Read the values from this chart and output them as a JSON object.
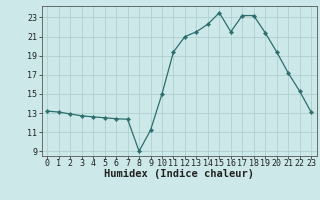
{
  "x": [
    0,
    1,
    2,
    3,
    4,
    5,
    6,
    7,
    8,
    9,
    10,
    11,
    12,
    13,
    14,
    15,
    16,
    17,
    18,
    19,
    20,
    21,
    22,
    23
  ],
  "y": [
    13.2,
    13.1,
    12.9,
    12.7,
    12.6,
    12.5,
    12.4,
    12.35,
    9.0,
    11.2,
    15.0,
    19.4,
    21.0,
    21.5,
    22.3,
    23.5,
    21.5,
    23.2,
    23.2,
    21.4,
    19.4,
    17.2,
    15.3,
    13.1
  ],
  "line_color": "#2d6e6e",
  "marker": "D",
  "marker_size": 2.2,
  "bg_color": "#cce8e8",
  "grid_color": "#b0d0d0",
  "xlabel": "Humidex (Indice chaleur)",
  "xlim": [
    -0.5,
    23.5
  ],
  "ylim": [
    8.5,
    24.2
  ],
  "yticks": [
    9,
    11,
    13,
    15,
    17,
    19,
    21,
    23
  ],
  "xticks": [
    0,
    1,
    2,
    3,
    4,
    5,
    6,
    7,
    8,
    9,
    10,
    11,
    12,
    13,
    14,
    15,
    16,
    17,
    18,
    19,
    20,
    21,
    22,
    23
  ],
  "tick_fontsize": 6.0,
  "xlabel_fontsize": 7.5,
  "axis_color": "#222222",
  "spine_color": "#555555",
  "linewidth": 0.9
}
